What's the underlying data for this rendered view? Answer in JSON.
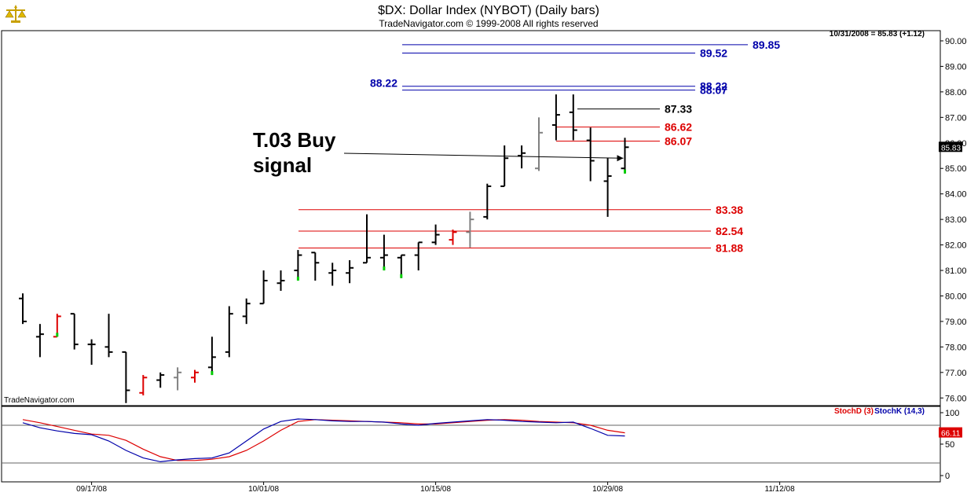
{
  "header": {
    "title": "$DX:  Dollar Index (NYBOT)  (Daily bars)",
    "subtitle": "TradeNavigator.com © 1999-2008 All rights reserved",
    "last_quote": "10/31/2008 = 85.83 (+1.12)",
    "watermark": "TradeNavigator.com",
    "logo_icon": "scales-icon"
  },
  "colors": {
    "up_bar": "#000000",
    "down_bar_red": "#dd0000",
    "gray_bar": "#808080",
    "green_tick": "#00cc00",
    "blue_line": "#0000aa",
    "red_line": "#dd0000",
    "stoch_d": "#dd0000",
    "stoch_k": "#0000aa"
  },
  "chart_data": [
    {
      "type": "ohlc",
      "panel": "price",
      "ylim": [
        75.7,
        90.4
      ],
      "yticks": [
        "90.00",
        "89.00",
        "88.00",
        "87.00",
        "86.00",
        "85.00",
        "84.00",
        "83.00",
        "82.00",
        "81.00",
        "80.00",
        "79.00",
        "78.00",
        "77.00",
        "76.00"
      ],
      "last_value_label": "85.83",
      "x_labels": [
        {
          "label": "09/17/08",
          "index": 4
        },
        {
          "label": "10/01/08",
          "index": 14
        },
        {
          "label": "10/15/08",
          "index": 24
        },
        {
          "label": "10/29/08",
          "index": 34
        },
        {
          "label": "11/12/08",
          "index": 44
        }
      ],
      "bars": [
        {
          "o": 79.9,
          "h": 80.1,
          "l": 78.9,
          "c": 79.0,
          "color": "black"
        },
        {
          "o": 78.4,
          "h": 78.9,
          "l": 77.6,
          "c": 78.5,
          "color": "black"
        },
        {
          "o": 78.4,
          "h": 79.3,
          "l": 78.4,
          "c": 79.2,
          "color": "red",
          "mark": "green"
        },
        {
          "o": 79.3,
          "h": 79.3,
          "l": 77.9,
          "c": 78.1,
          "color": "black"
        },
        {
          "o": 78.1,
          "h": 78.3,
          "l": 77.3,
          "c": 78.1,
          "color": "black"
        },
        {
          "o": 78.0,
          "h": 79.3,
          "l": 77.6,
          "c": 77.8,
          "color": "black"
        },
        {
          "o": 77.8,
          "h": 77.8,
          "l": 75.8,
          "c": 76.3,
          "color": "black"
        },
        {
          "o": 76.2,
          "h": 76.9,
          "l": 76.1,
          "c": 76.8,
          "color": "red"
        },
        {
          "o": 76.7,
          "h": 77.0,
          "l": 76.4,
          "c": 76.9,
          "color": "black"
        },
        {
          "o": 76.8,
          "h": 77.2,
          "l": 76.3,
          "c": 77.0,
          "color": "gray"
        },
        {
          "o": 76.8,
          "h": 77.1,
          "l": 76.6,
          "c": 77.0,
          "color": "red"
        },
        {
          "o": 77.2,
          "h": 78.4,
          "l": 76.9,
          "c": 77.6,
          "color": "black",
          "mark": "green"
        },
        {
          "o": 77.8,
          "h": 79.6,
          "l": 77.6,
          "c": 79.3,
          "color": "black"
        },
        {
          "o": 79.2,
          "h": 79.9,
          "l": 78.9,
          "c": 79.7,
          "color": "black"
        },
        {
          "o": 79.7,
          "h": 81.0,
          "l": 79.7,
          "c": 80.6,
          "color": "black"
        },
        {
          "o": 80.5,
          "h": 81.0,
          "l": 80.2,
          "c": 80.6,
          "color": "black"
        },
        {
          "o": 81.0,
          "h": 81.8,
          "l": 80.6,
          "c": 81.6,
          "color": "black",
          "mark": "green"
        },
        {
          "o": 81.7,
          "h": 81.7,
          "l": 80.6,
          "c": 81.3,
          "color": "black"
        },
        {
          "o": 80.9,
          "h": 81.3,
          "l": 80.4,
          "c": 81.0,
          "color": "black"
        },
        {
          "o": 80.9,
          "h": 81.4,
          "l": 80.5,
          "c": 81.1,
          "color": "black"
        },
        {
          "o": 81.3,
          "h": 83.2,
          "l": 81.3,
          "c": 81.5,
          "color": "black"
        },
        {
          "o": 81.5,
          "h": 82.4,
          "l": 81.0,
          "c": 81.6,
          "color": "black",
          "mark": "green"
        },
        {
          "o": 81.5,
          "h": 81.6,
          "l": 80.7,
          "c": 81.6,
          "color": "black",
          "mark": "green"
        },
        {
          "o": 81.6,
          "h": 82.1,
          "l": 81.0,
          "c": 82.1,
          "color": "black"
        },
        {
          "o": 82.1,
          "h": 82.8,
          "l": 82.0,
          "c": 82.4,
          "color": "black"
        },
        {
          "o": 82.2,
          "h": 82.6,
          "l": 82.0,
          "c": 82.5,
          "color": "red"
        },
        {
          "o": 82.5,
          "h": 83.3,
          "l": 81.9,
          "c": 83.0,
          "color": "gray"
        },
        {
          "o": 83.1,
          "h": 84.4,
          "l": 83.0,
          "c": 84.3,
          "color": "black"
        },
        {
          "o": 84.3,
          "h": 85.9,
          "l": 84.3,
          "c": 85.4,
          "color": "black"
        },
        {
          "o": 85.5,
          "h": 85.9,
          "l": 85.0,
          "c": 85.6,
          "color": "black"
        },
        {
          "o": 85.0,
          "h": 87.0,
          "l": 84.9,
          "c": 86.4,
          "color": "gray"
        },
        {
          "o": 86.7,
          "h": 87.9,
          "l": 86.1,
          "c": 87.1,
          "color": "black"
        },
        {
          "o": 87.2,
          "h": 87.9,
          "l": 86.1,
          "c": 86.5,
          "color": "black"
        },
        {
          "o": 86.1,
          "h": 86.6,
          "l": 84.5,
          "c": 85.3,
          "color": "black"
        },
        {
          "o": 84.5,
          "h": 85.4,
          "l": 83.1,
          "c": 84.7,
          "color": "black"
        },
        {
          "o": 85.0,
          "h": 86.2,
          "l": 84.8,
          "c": 85.83,
          "color": "black",
          "mark": "green"
        }
      ],
      "levels": [
        {
          "value": 89.85,
          "label": "89.85",
          "color": "blue"
        },
        {
          "value": 89.52,
          "label": "89.52",
          "color": "blue"
        },
        {
          "value": 88.22,
          "label": "88.22",
          "color": "blue",
          "left_label": true
        },
        {
          "value": 88.07,
          "label": "88.07",
          "color": "blue"
        },
        {
          "value": 87.33,
          "label": "87.33",
          "color": "black"
        },
        {
          "value": 86.62,
          "label": "86.62",
          "color": "red"
        },
        {
          "value": 86.07,
          "label": "86.07",
          "color": "red"
        },
        {
          "value": 83.38,
          "label": "83.38",
          "color": "red"
        },
        {
          "value": 82.54,
          "label": "82.54",
          "color": "red"
        },
        {
          "value": 81.88,
          "label": "81.88",
          "color": "red"
        }
      ],
      "annotation": {
        "text_line1": "T.03 Buy",
        "text_line2": "signal",
        "target_bar": 35,
        "target_value": 85.4
      }
    },
    {
      "type": "line",
      "panel": "stochastic",
      "ylim": [
        -10,
        110
      ],
      "yticks": [
        "100",
        "50",
        "0"
      ],
      "reference_lines": [
        80,
        20
      ],
      "last_value_label": "66.11",
      "legend": [
        {
          "name": "StochD (3)",
          "color": "red"
        },
        {
          "name": "StochK (14,3)",
          "color": "blue"
        }
      ],
      "series": [
        {
          "name": "StochD (3)",
          "values": [
            89,
            84,
            78,
            72,
            66,
            64,
            56,
            42,
            30,
            24,
            24,
            26,
            30,
            40,
            55,
            72,
            86,
            89,
            88,
            87,
            86,
            85,
            84,
            82,
            82,
            84,
            86,
            88,
            89,
            88,
            86,
            85,
            84,
            80,
            72,
            68
          ]
        },
        {
          "name": "StochK (14,3)",
          "values": [
            84,
            76,
            71,
            67,
            65,
            55,
            40,
            28,
            22,
            25,
            27,
            28,
            36,
            55,
            74,
            86,
            90,
            89,
            87,
            86,
            86,
            85,
            82,
            80,
            83,
            85,
            87,
            89,
            88,
            86,
            85,
            84,
            85,
            75,
            64,
            63
          ]
        }
      ]
    }
  ]
}
